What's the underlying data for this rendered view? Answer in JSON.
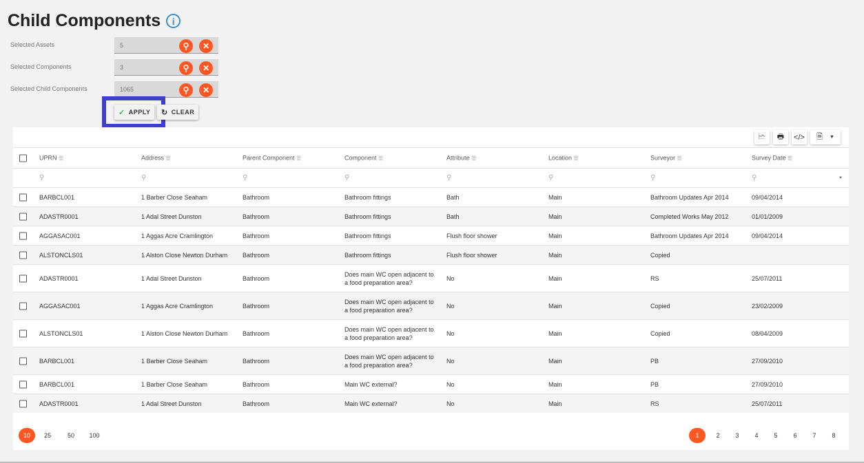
{
  "title": "Child Components",
  "filters": [
    {
      "label": "Selected Assets",
      "value": "5"
    },
    {
      "label": "Selected Components",
      "value": "3"
    },
    {
      "label": "Selected Child Components",
      "value": "1065"
    }
  ],
  "buttons": {
    "apply": "APPLY",
    "clear": "CLEAR"
  },
  "accent": "#ff5722",
  "columns": [
    "UPRN",
    "Address",
    "Parent Component",
    "Component",
    "Attribute",
    "Location",
    "Surveyor",
    "Survey Date"
  ],
  "rows": [
    [
      "BARBCL001",
      "1 Barber Close Seaham",
      "Bathroom",
      "Bathroom fittings",
      "Bath",
      "Main",
      "Bathroom Updates Apr 2014",
      "09/04/2014"
    ],
    [
      "ADASTR0001",
      "1 Adal Street Dunston",
      "Bathroom",
      "Bathroom fittings",
      "Bath",
      "Main",
      "Completed Works May 2012",
      "01/01/2009"
    ],
    [
      "AGGASAC001",
      "1 Aggas Acre Cramlington",
      "Bathroom",
      "Bathroom fittings",
      "Flush floor shower",
      "Main",
      "Bathroom Updates Apr 2014",
      "09/04/2014"
    ],
    [
      "ALSTONCLS01",
      "1 Alston Close Newton Durham",
      "Bathroom",
      "Bathroom fittings",
      "Flush floor shower",
      "Main",
      "Copied",
      ""
    ],
    [
      "ADASTR0001",
      "1 Adal Street Dunston",
      "Bathroom",
      "Does main WC open adjacent to a food preparation area?",
      "No",
      "Main",
      "RS",
      "25/07/2011"
    ],
    [
      "AGGASAC001",
      "1 Aggas Acre Cramlington",
      "Bathroom",
      "Does main WC open adjacent to a food preparation area?",
      "No",
      "Main",
      "Copied",
      "23/02/2009"
    ],
    [
      "ALSTONCLS01",
      "1 Alston Close Newton Durham",
      "Bathroom",
      "Does main WC open adjacent to a food preparation area?",
      "No",
      "Main",
      "Copied",
      "08/04/2009"
    ],
    [
      "BARBCL001",
      "1 Barber Close Seaham",
      "Bathroom",
      "Does main WC open adjacent to a food preparation area?",
      "No",
      "Main",
      "PB",
      "27/09/2010"
    ],
    [
      "BARBCL001",
      "1 Barber Close Seaham",
      "Bathroom",
      "Main WC external?",
      "No",
      "Main",
      "PB",
      "27/09/2010"
    ],
    [
      "ADASTR0001",
      "1 Adal Street Dunston",
      "Bathroom",
      "Main WC external?",
      "No",
      "Main",
      "RS",
      "25/07/2011"
    ]
  ],
  "page_sizes": [
    "10",
    "25",
    "50",
    "100"
  ],
  "page_size_selected": "10",
  "pages": [
    "1",
    "2",
    "3",
    "4",
    "5",
    "6",
    "7",
    "8"
  ],
  "page_selected": "1"
}
